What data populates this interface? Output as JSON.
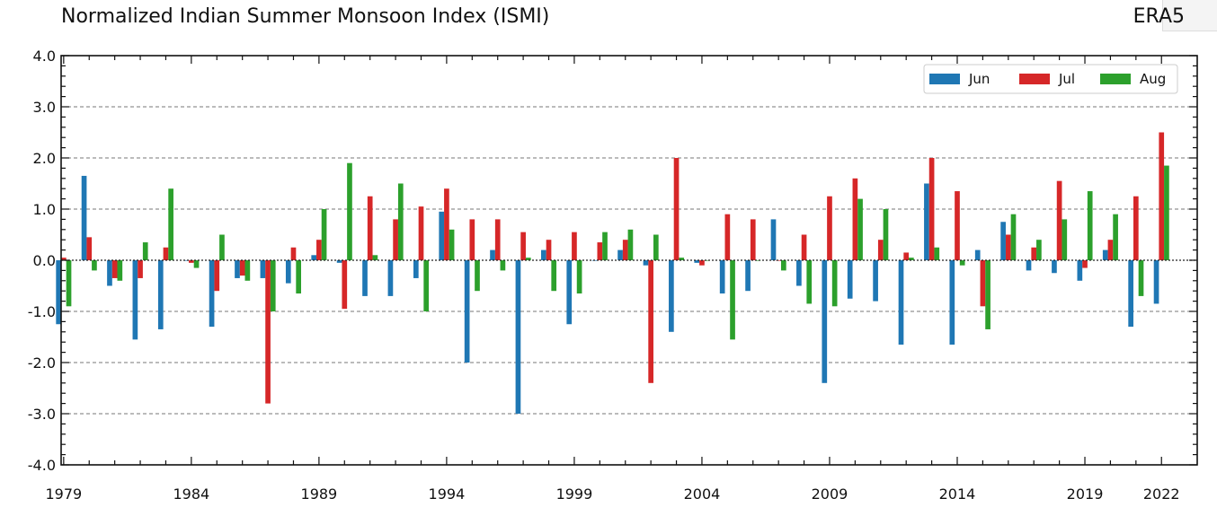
{
  "header": {
    "title": "Normalized Indian Summer Monsoon Index (ISMI)",
    "source": "ERA5"
  },
  "colors": {
    "jun": "#1f77b4",
    "jul": "#d62728",
    "aug": "#2ca02c"
  },
  "chart_data": {
    "type": "bar",
    "title": "Normalized Indian Summer Monsoon Index (ISMI)",
    "xlabel": "",
    "ylabel": "",
    "ylim": [
      -4.0,
      4.0
    ],
    "xlim": [
      1978.9,
      2023.4
    ],
    "xticks": [
      1979,
      1984,
      1989,
      1994,
      1999,
      2004,
      2009,
      2014,
      2019,
      2022
    ],
    "yticks": [
      "-4.0",
      "-3.0",
      "-2.0",
      "-1.0",
      "0.0",
      "1.0",
      "2.0",
      "3.0",
      "4.0"
    ],
    "grid": "dashed horizontal at major y ticks",
    "legend_placement": "top-right",
    "categories": [
      1979,
      1980,
      1981,
      1982,
      1983,
      1984,
      1985,
      1986,
      1987,
      1988,
      1989,
      1990,
      1991,
      1992,
      1993,
      1994,
      1995,
      1996,
      1997,
      1998,
      1999,
      2000,
      2001,
      2002,
      2003,
      2004,
      2005,
      2006,
      2007,
      2008,
      2009,
      2010,
      2011,
      2012,
      2013,
      2014,
      2015,
      2016,
      2017,
      2018,
      2019,
      2020,
      2021,
      2022
    ],
    "series": [
      {
        "name": "Jun",
        "values": [
          -1.25,
          1.65,
          -0.5,
          -1.55,
          -1.35,
          0.0,
          -1.3,
          -0.35,
          -0.35,
          -0.45,
          0.1,
          -0.05,
          -0.7,
          -0.7,
          -0.35,
          0.95,
          -2.0,
          0.2,
          -3.0,
          0.2,
          -1.25,
          0.0,
          0.2,
          -0.1,
          -1.4,
          -0.05,
          -0.65,
          -0.6,
          0.8,
          -0.5,
          -2.4,
          -0.75,
          -0.8,
          -1.65,
          1.5,
          -1.65,
          0.2,
          0.75,
          -0.2,
          -0.25,
          -0.4,
          0.2,
          -1.3,
          -0.85
        ]
      },
      {
        "name": "Jul",
        "values": [
          0.05,
          0.45,
          -0.35,
          -0.35,
          0.25,
          -0.05,
          -0.6,
          -0.3,
          -2.8,
          0.25,
          0.4,
          -0.95,
          1.25,
          0.8,
          1.05,
          1.4,
          0.8,
          0.8,
          0.55,
          0.4,
          0.55,
          0.35,
          0.4,
          -2.4,
          2.0,
          -0.1,
          0.9,
          0.8,
          0.0,
          0.5,
          1.25,
          1.6,
          0.4,
          0.15,
          2.0,
          1.35,
          -0.9,
          0.5,
          0.25,
          1.55,
          -0.15,
          0.4,
          1.25,
          2.5
        ]
      },
      {
        "name": "Aug",
        "values": [
          -0.9,
          -0.2,
          -0.4,
          0.35,
          1.4,
          -0.15,
          0.5,
          -0.4,
          -1.0,
          -0.65,
          1.0,
          1.9,
          0.1,
          1.5,
          -1.0,
          0.6,
          -0.6,
          -0.2,
          0.05,
          -0.6,
          -0.65,
          0.55,
          0.6,
          0.5,
          0.05,
          0.0,
          -1.55,
          0.0,
          -0.2,
          -0.85,
          -0.9,
          1.2,
          1.0,
          0.05,
          0.25,
          -0.1,
          -1.35,
          0.9,
          0.4,
          0.8,
          1.35,
          0.9,
          -0.7,
          1.85
        ]
      }
    ]
  }
}
